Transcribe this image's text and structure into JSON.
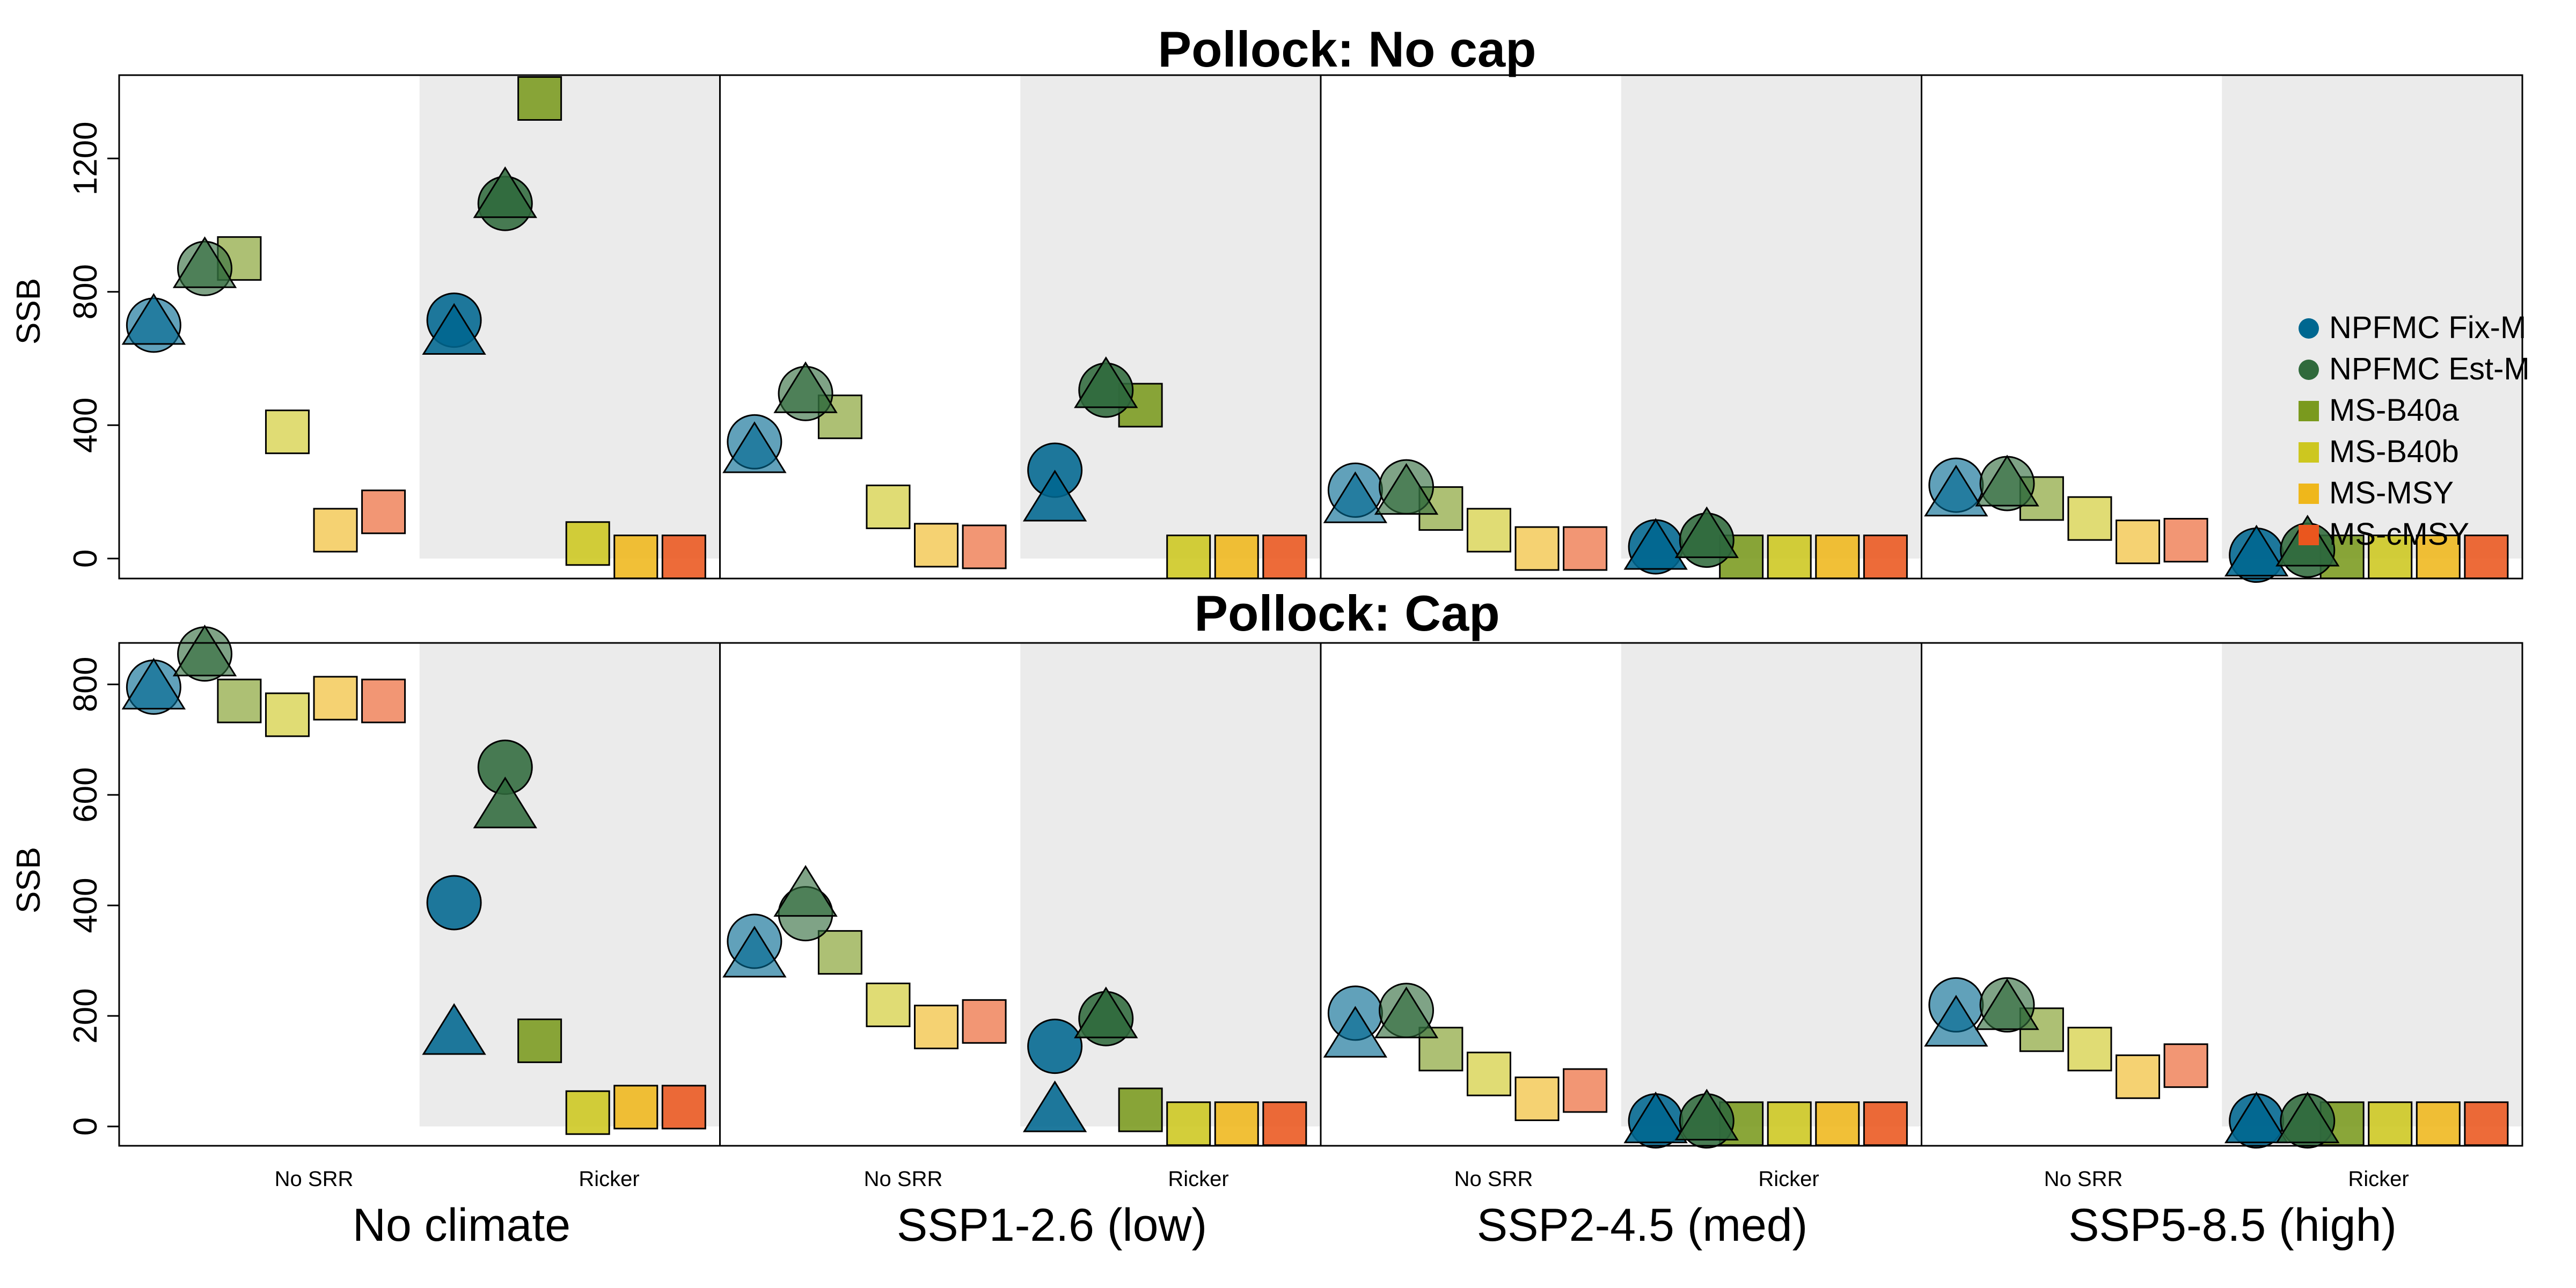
{
  "colors": {
    "NPFMC Fix-M": "#006790",
    "NPFMC Est-M": "#306a3c",
    "MS-B40a": "#7a9a1e",
    "MS-B40b": "#cdc71f",
    "MS-MSY": "#efb71b",
    "MS-cMSY": "#ea561e",
    "shade": "#ebebeb"
  },
  "legend": {
    "items": [
      {
        "label": "NPFMC Fix-M",
        "shape": "circle"
      },
      {
        "label": "NPFMC Est-M",
        "shape": "circle"
      },
      {
        "label": "MS-B40a",
        "shape": "square"
      },
      {
        "label": "MS-B40b",
        "shape": "square"
      },
      {
        "label": "MS-MSY",
        "shape": "square"
      },
      {
        "label": "MS-cMSY",
        "shape": "square"
      }
    ]
  },
  "scenarios": [
    "No climate",
    "SSP1-2.6 (low)",
    "SSP2-4.5 (med)",
    "SSP5-8.5 (high)"
  ],
  "srr_labels": [
    "No SRR",
    "Ricker"
  ],
  "chart_data": [
    {
      "type": "scatter",
      "title": "Pollock: No cap",
      "ylabel": "SSB",
      "ylim": [
        -60,
        1450
      ],
      "yticks": [
        0,
        400,
        800,
        1200
      ],
      "groups": [
        {
          "circles": [
            700,
            870
          ],
          "triangles": [
            700,
            870
          ],
          "squares": [
            900,
            380,
            85,
            140
          ]
        },
        {
          "circles": [
            715,
            1065
          ],
          "triangles": [
            670,
            1080
          ],
          "squares": [
            1380,
            45,
            5,
            5
          ]
        },
        {
          "circles": [
            350,
            495
          ],
          "triangles": [
            315,
            495
          ],
          "squares": [
            425,
            155,
            40,
            35
          ]
        },
        {
          "circles": [
            265,
            505
          ],
          "triangles": [
            170,
            510
          ],
          "squares": [
            460,
            5,
            5,
            5
          ]
        },
        {
          "circles": [
            205,
            215
          ],
          "triangles": [
            165,
            190
          ],
          "squares": [
            150,
            85,
            30,
            30
          ]
        },
        {
          "circles": [
            35,
            55
          ],
          "triangles": [
            25,
            60
          ],
          "squares": [
            5,
            5,
            5,
            5
          ]
        },
        {
          "circles": [
            220,
            225
          ],
          "triangles": [
            185,
            215
          ],
          "squares": [
            180,
            120,
            50,
            55
          ]
        },
        {
          "circles": [
            10,
            25
          ],
          "triangles": [
            5,
            35
          ],
          "squares": [
            5,
            5,
            5,
            5
          ]
        }
      ]
    },
    {
      "type": "scatter",
      "title": "Pollock: Cap",
      "ylabel": "SSB",
      "ylim": [
        -35,
        875
      ],
      "yticks": [
        0,
        200,
        400,
        600,
        800
      ],
      "groups": [
        {
          "circles": [
            795,
            855
          ],
          "triangles": [
            790,
            850
          ],
          "squares": [
            770,
            745,
            775,
            770
          ]
        },
        {
          "circles": [
            405,
            650
          ],
          "triangles": [
            165,
            575
          ],
          "squares": [
            155,
            25,
            35,
            35
          ]
        },
        {
          "circles": [
            335,
            385
          ],
          "triangles": [
            305,
            415
          ],
          "squares": [
            315,
            220,
            180,
            190
          ]
        },
        {
          "circles": [
            145,
            195
          ],
          "triangles": [
            25,
            195
          ],
          "squares": [
            30,
            5,
            5,
            5
          ]
        },
        {
          "circles": [
            205,
            210
          ],
          "triangles": [
            160,
            195
          ],
          "squares": [
            140,
            95,
            50,
            65
          ]
        },
        {
          "circles": [
            10,
            10
          ],
          "triangles": [
            5,
            10
          ],
          "squares": [
            5,
            5,
            5,
            5
          ]
        },
        {
          "circles": [
            220,
            220
          ],
          "triangles": [
            180,
            210
          ],
          "squares": [
            175,
            140,
            90,
            110
          ]
        },
        {
          "circles": [
            10,
            10
          ],
          "triangles": [
            5,
            5
          ],
          "squares": [
            5,
            5,
            5,
            5
          ]
        }
      ]
    }
  ]
}
